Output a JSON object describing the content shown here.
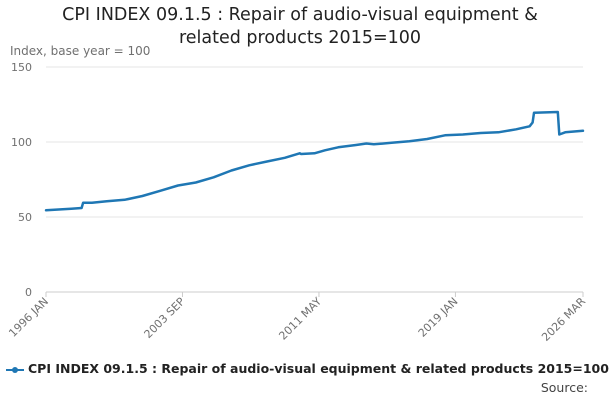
{
  "title": {
    "line1": "CPI INDEX 09.1.5 : Repair of audio-visual equipment &",
    "line2": "related products 2015=100"
  },
  "source_label": "Source:",
  "colors": {
    "series": "#1f77b4",
    "grid": "#e6e6e6",
    "axis": "#cccccc",
    "text": "#707070"
  },
  "chart_data": {
    "type": "line",
    "ylabel": "Index, base year = 100",
    "ylim": [
      0,
      150
    ],
    "yticks": [
      0,
      50,
      100,
      150
    ],
    "xticks": [
      "1996 JAN",
      "2003 SEP",
      "2011 MAY",
      "2019 JAN",
      "2026 MAR"
    ],
    "xrange": [
      "1996-01",
      "2026-03"
    ],
    "grid": true,
    "legend_position": "bottom",
    "series": [
      {
        "name": "CPI INDEX 09.1.5 : Repair of audio-visual equipment & related products 2015=100",
        "points": [
          [
            "1996-01",
            54.5
          ],
          [
            "1997-06",
            55.5
          ],
          [
            "1998-01",
            56.0
          ],
          [
            "1998-02",
            59.5
          ],
          [
            "1998-08",
            59.5
          ],
          [
            "1999-06",
            60.5
          ],
          [
            "2000-06",
            61.5
          ],
          [
            "2001-06",
            64.0
          ],
          [
            "2002-06",
            67.5
          ],
          [
            "2003-06",
            71.0
          ],
          [
            "2004-06",
            73.0
          ],
          [
            "2005-06",
            76.5
          ],
          [
            "2006-06",
            81.0
          ],
          [
            "2007-06",
            84.5
          ],
          [
            "2008-06",
            87.0
          ],
          [
            "2009-06",
            89.5
          ],
          [
            "2010-04",
            92.5
          ],
          [
            "2010-05",
            92.0
          ],
          [
            "2011-02",
            92.5
          ],
          [
            "2011-09",
            94.5
          ],
          [
            "2012-06",
            96.5
          ],
          [
            "2013-06",
            98.0
          ],
          [
            "2014-01",
            99.0
          ],
          [
            "2014-06",
            98.5
          ],
          [
            "2015-06",
            99.5
          ],
          [
            "2016-06",
            100.5
          ],
          [
            "2017-06",
            102.0
          ],
          [
            "2018-06",
            104.5
          ],
          [
            "2019-06",
            105.0
          ],
          [
            "2020-06",
            106.0
          ],
          [
            "2021-06",
            106.5
          ],
          [
            "2022-06",
            108.5
          ],
          [
            "2023-03",
            110.5
          ],
          [
            "2023-05",
            113.0
          ],
          [
            "2023-06",
            119.5
          ],
          [
            "2024-10",
            120.0
          ],
          [
            "2024-11",
            105.0
          ],
          [
            "2025-03",
            106.5
          ],
          [
            "2026-03",
            107.5
          ]
        ]
      }
    ]
  }
}
